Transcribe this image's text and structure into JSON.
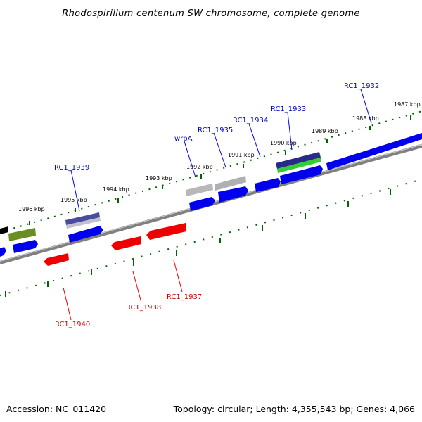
{
  "title": "Rhodospirillum centenum SW chromosome, complete genome",
  "footer": {
    "accession": "Accession: NC_011420",
    "topology": "Topology: circular; Length: 4,355,543 bp; Genes: 4,066"
  },
  "scale_labels": [
    "1987 kbp",
    "1988 kbp",
    "1989 kbp",
    "1990 kbp",
    "1991 kbp",
    "1992 kbp",
    "1993 kbp",
    "1994 kbp",
    "1995 kbp",
    "1996 kbp"
  ],
  "gene_labels_forward": [
    "RC1_1932",
    "RC1_1933",
    "RC1_1934",
    "RC1_1935",
    "wrbA",
    "RC1_1939"
  ],
  "gene_labels_reverse": [
    "RC1_1937",
    "RC1_1938",
    "RC1_1940"
  ],
  "colors": {
    "forward_gene": "#0000ee",
    "reverse_gene": "#ee0000",
    "ticks": "#006400",
    "backbone": "#808080",
    "forward_label": "#0000cc",
    "reverse_label": "#cc0000",
    "feature_gray": "#b0b0b0",
    "feature_olive": "#6b8e23",
    "feature_green": "#32cd32",
    "feature_navy": "#1a1a8a"
  }
}
